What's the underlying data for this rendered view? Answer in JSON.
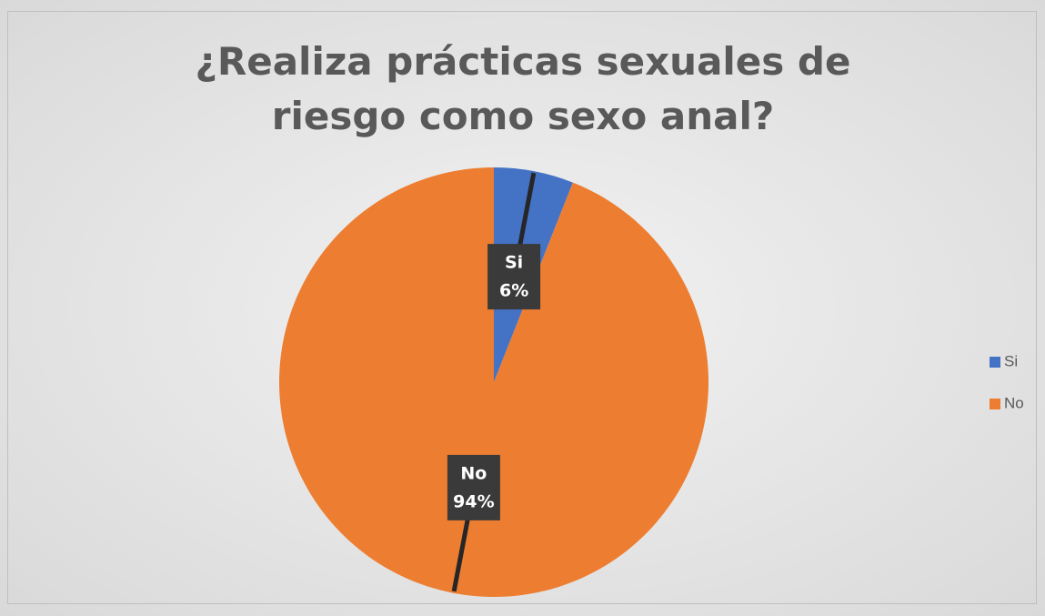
{
  "chart_data": {
    "type": "pie",
    "title": "¿Realiza prácticas sexuales de riesgo como sexo anal?",
    "categories": [
      "Si",
      "No"
    ],
    "values": [
      6,
      94
    ],
    "value_labels": [
      "6%",
      "94%"
    ],
    "colors": [
      "#4472c4",
      "#ed7d31"
    ],
    "legend": "right"
  }
}
